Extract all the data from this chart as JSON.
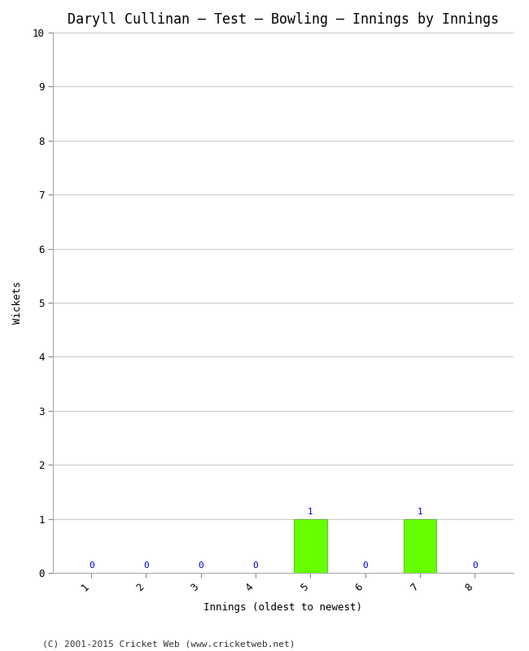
{
  "title": "Daryll Cullinan – Test – Bowling – Innings by Innings",
  "xlabel": "Innings (oldest to newest)",
  "ylabel": "Wickets",
  "categories": [
    1,
    2,
    3,
    4,
    5,
    6,
    7,
    8
  ],
  "values": [
    0,
    0,
    0,
    0,
    1,
    0,
    1,
    0
  ],
  "bar_color": "#66ff00",
  "ylim": [
    0,
    10
  ],
  "yticks": [
    0,
    1,
    2,
    3,
    4,
    5,
    6,
    7,
    8,
    9,
    10
  ],
  "label_color": "#0000cc",
  "label_fontsize": 8,
  "title_fontsize": 12,
  "axis_label_fontsize": 9,
  "tick_fontsize": 9,
  "footer": "(C) 2001-2015 Cricket Web (www.cricketweb.net)",
  "footer_fontsize": 8,
  "background_color": "#ffffff",
  "grid_color": "#cccccc",
  "bar_width": 0.6
}
